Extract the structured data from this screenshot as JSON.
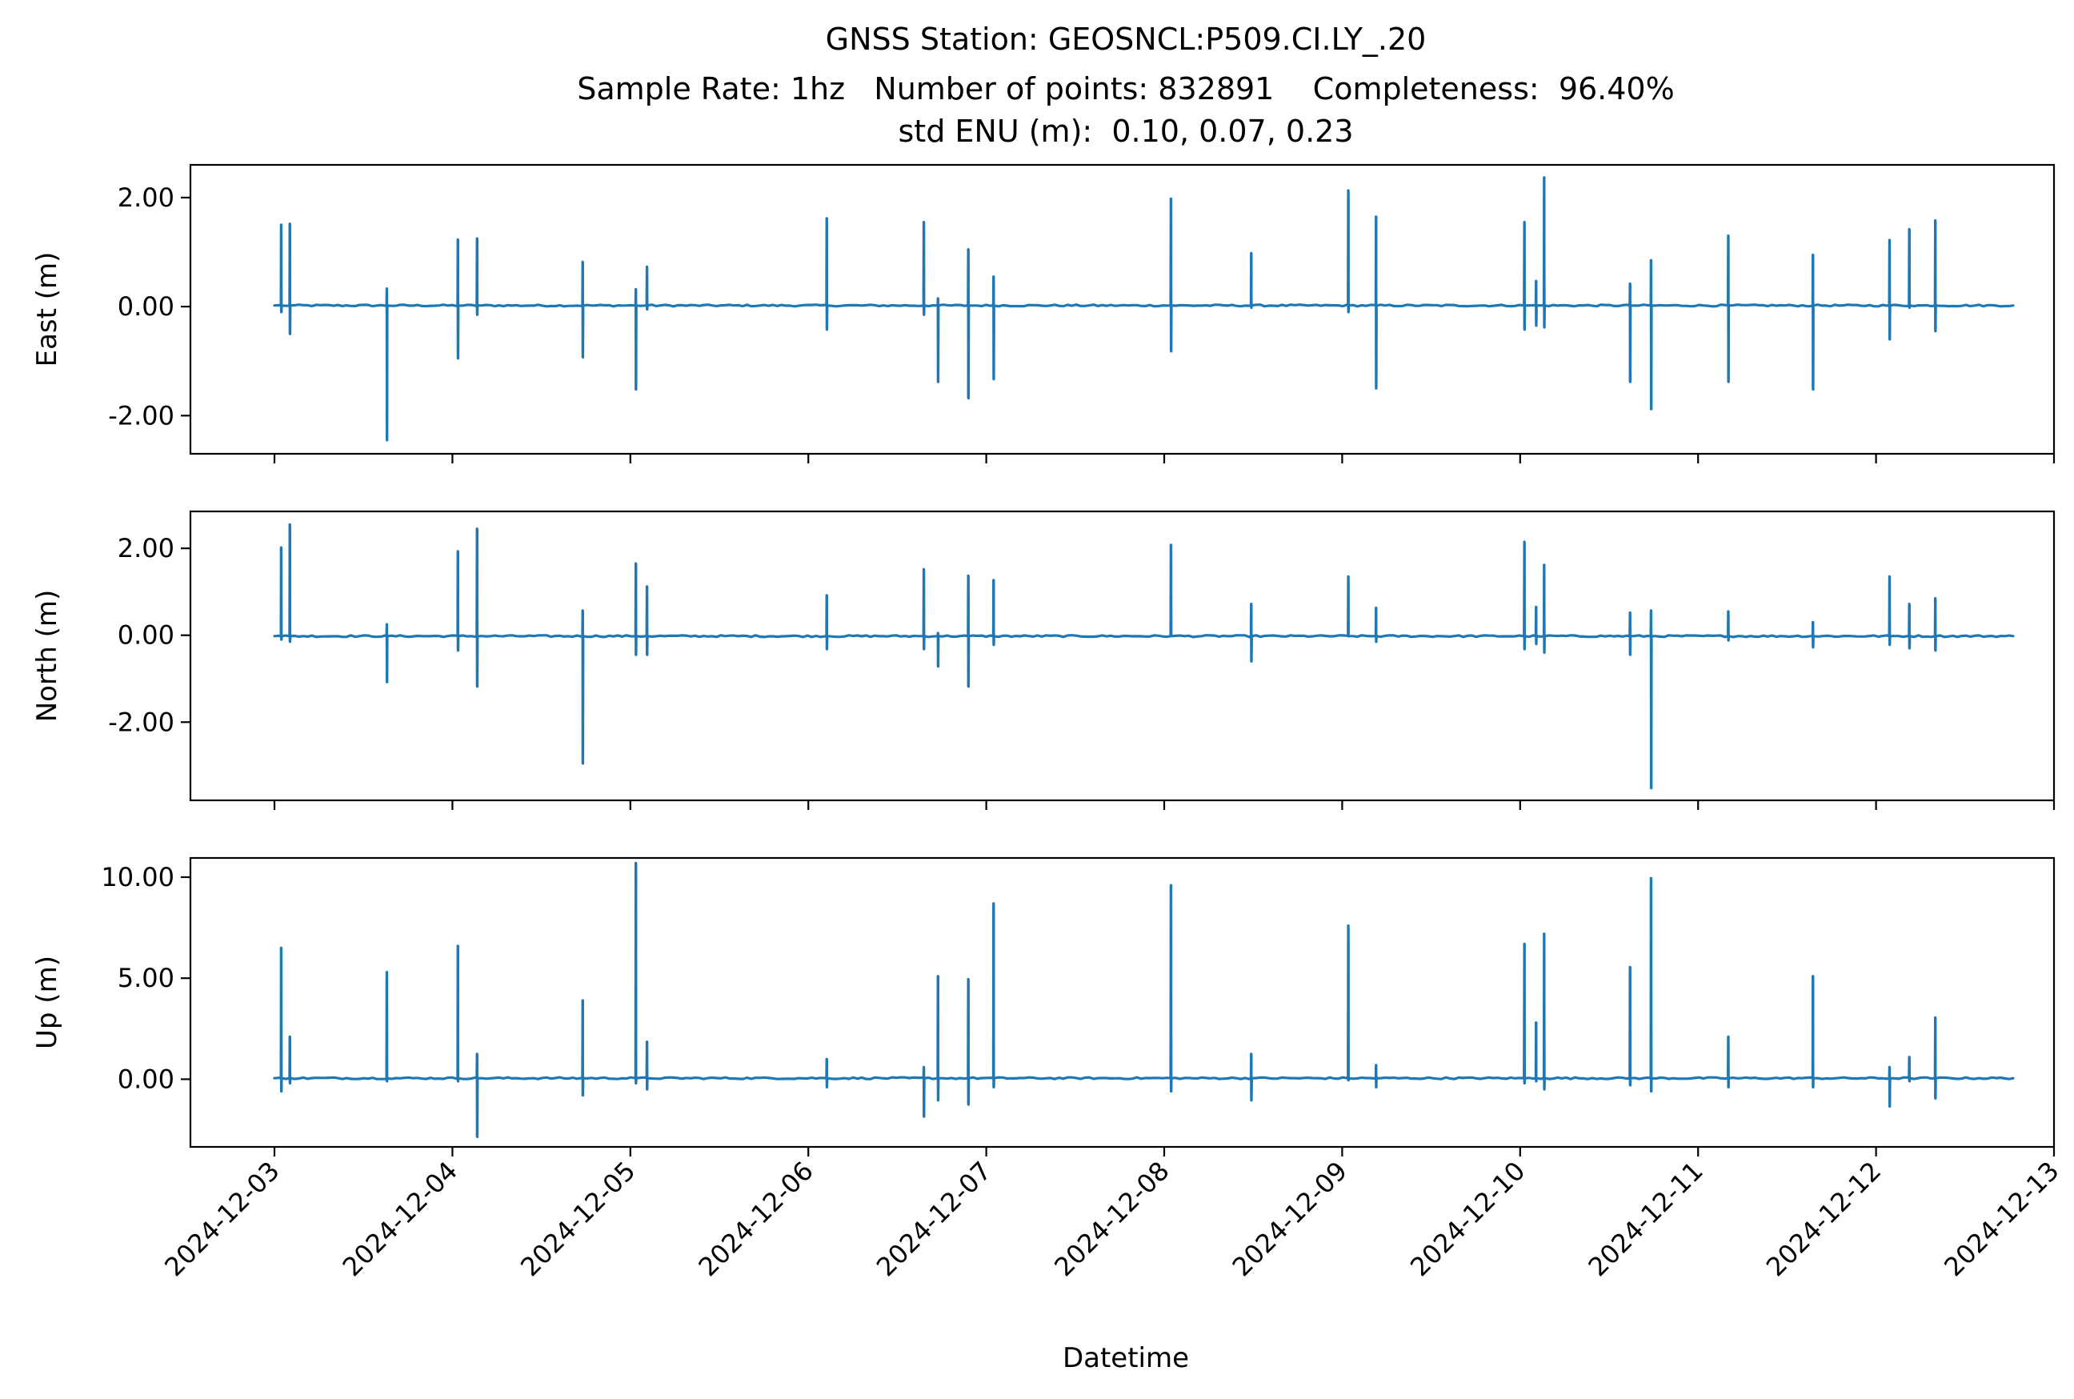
{
  "chart_data": [
    {
      "type": "line",
      "panel": "east",
      "title": [
        "GNSS Station: GEOSNCL:P509.CI.LY_.20",
        "Sample Rate: 1hz   Number of points: 832891    Completeness:  96.40%",
        "std ENU (m):  0.10, 0.07, 0.23"
      ],
      "ylabel": "East (m)",
      "xlabel": "",
      "xlim": [
        "2024-12-02T12:40",
        "2024-12-13T00:00"
      ],
      "ylim": [
        -2.7,
        2.6
      ],
      "yticks": [
        2.0,
        0.0,
        -2.0
      ],
      "ytick_labels": [
        "2.00",
        "0.00",
        "-2.00"
      ],
      "grid": false,
      "color": "#1f77b4",
      "baseline": 0.02,
      "spikes": [
        {
          "t": "2024-12-03T00:55",
          "hi": 1.5,
          "lo": -0.1
        },
        {
          "t": "2024-12-03T02:05",
          "hi": 1.52,
          "lo": -0.5
        },
        {
          "t": "2024-12-03T15:10",
          "hi": 0.33,
          "lo": -2.45
        },
        {
          "t": "2024-12-04T00:45",
          "hi": 1.23,
          "lo": -0.95
        },
        {
          "t": "2024-12-04T03:20",
          "hi": 1.25,
          "lo": -0.15
        },
        {
          "t": "2024-12-04T17:35",
          "hi": 0.82,
          "lo": -0.93
        },
        {
          "t": "2024-12-05T00:45",
          "hi": 0.32,
          "lo": -1.52
        },
        {
          "t": "2024-12-05T02:15",
          "hi": 0.73,
          "lo": -0.05
        },
        {
          "t": "2024-12-06T02:30",
          "hi": 1.62,
          "lo": -0.42
        },
        {
          "t": "2024-12-06T15:35",
          "hi": 1.55,
          "lo": -0.15
        },
        {
          "t": "2024-12-06T17:30",
          "hi": 0.15,
          "lo": -1.38
        },
        {
          "t": "2024-12-06T21:35",
          "hi": 1.05,
          "lo": -1.68
        },
        {
          "t": "2024-12-07T01:00",
          "hi": 0.55,
          "lo": -1.33
        },
        {
          "t": "2024-12-08T00:55",
          "hi": 1.98,
          "lo": -0.82
        },
        {
          "t": "2024-12-08T11:45",
          "hi": 0.98,
          "lo": -0.02
        },
        {
          "t": "2024-12-09T00:50",
          "hi": 2.13,
          "lo": -0.1
        },
        {
          "t": "2024-12-09T04:35",
          "hi": 1.65,
          "lo": -1.5
        },
        {
          "t": "2024-12-10T00:35",
          "hi": 1.55,
          "lo": -0.42
        },
        {
          "t": "2024-12-10T02:10",
          "hi": 0.47,
          "lo": -0.35
        },
        {
          "t": "2024-12-10T03:15",
          "hi": 2.37,
          "lo": -0.38
        },
        {
          "t": "2024-12-10T14:50",
          "hi": 0.42,
          "lo": -1.38
        },
        {
          "t": "2024-12-10T17:40",
          "hi": 0.85,
          "lo": -1.88
        },
        {
          "t": "2024-12-11T04:05",
          "hi": 1.3,
          "lo": -1.38
        },
        {
          "t": "2024-12-11T15:30",
          "hi": 0.95,
          "lo": -1.52
        },
        {
          "t": "2024-12-12T01:50",
          "hi": 1.22,
          "lo": -0.6
        },
        {
          "t": "2024-12-12T04:30",
          "hi": 1.42,
          "lo": -0.02
        },
        {
          "t": "2024-12-12T08:00",
          "hi": 1.58,
          "lo": -0.45
        }
      ]
    },
    {
      "type": "line",
      "panel": "north",
      "ylabel": "North (m)",
      "xlabel": "",
      "xlim": [
        "2024-12-02T12:40",
        "2024-12-13T00:00"
      ],
      "ylim": [
        -3.8,
        2.85
      ],
      "yticks": [
        2.0,
        0.0,
        -2.0
      ],
      "ytick_labels": [
        "2.00",
        "0.00",
        "-2.00"
      ],
      "grid": false,
      "color": "#1f77b4",
      "baseline": -0.02,
      "spikes": [
        {
          "t": "2024-12-03T00:55",
          "hi": 2.02,
          "lo": -0.1
        },
        {
          "t": "2024-12-03T02:05",
          "hi": 2.55,
          "lo": -0.15
        },
        {
          "t": "2024-12-03T15:10",
          "hi": 0.25,
          "lo": -1.08
        },
        {
          "t": "2024-12-04T00:45",
          "hi": 1.93,
          "lo": -0.35
        },
        {
          "t": "2024-12-04T03:20",
          "hi": 2.45,
          "lo": -1.18
        },
        {
          "t": "2024-12-04T17:35",
          "hi": 0.57,
          "lo": -2.95
        },
        {
          "t": "2024-12-05T00:45",
          "hi": 1.65,
          "lo": -0.45
        },
        {
          "t": "2024-12-05T02:15",
          "hi": 1.12,
          "lo": -0.45
        },
        {
          "t": "2024-12-06T02:30",
          "hi": 0.92,
          "lo": -0.32
        },
        {
          "t": "2024-12-06T15:35",
          "hi": 1.52,
          "lo": -0.32
        },
        {
          "t": "2024-12-06T17:30",
          "hi": 0.05,
          "lo": -0.72
        },
        {
          "t": "2024-12-06T21:35",
          "hi": 1.37,
          "lo": -1.18
        },
        {
          "t": "2024-12-07T01:00",
          "hi": 1.27,
          "lo": -0.22
        },
        {
          "t": "2024-12-08T00:55",
          "hi": 2.08,
          "lo": -0.02
        },
        {
          "t": "2024-12-08T11:45",
          "hi": 0.72,
          "lo": -0.6
        },
        {
          "t": "2024-12-09T00:50",
          "hi": 1.35,
          "lo": -0.02
        },
        {
          "t": "2024-12-09T04:35",
          "hi": 0.63,
          "lo": -0.15
        },
        {
          "t": "2024-12-10T00:35",
          "hi": 2.15,
          "lo": -0.32
        },
        {
          "t": "2024-12-10T02:10",
          "hi": 0.65,
          "lo": -0.2
        },
        {
          "t": "2024-12-10T03:15",
          "hi": 1.62,
          "lo": -0.4
        },
        {
          "t": "2024-12-10T14:50",
          "hi": 0.52,
          "lo": -0.45
        },
        {
          "t": "2024-12-10T17:40",
          "hi": 0.57,
          "lo": -3.52
        },
        {
          "t": "2024-12-11T04:05",
          "hi": 0.55,
          "lo": -0.12
        },
        {
          "t": "2024-12-11T15:30",
          "hi": 0.3,
          "lo": -0.28
        },
        {
          "t": "2024-12-12T01:50",
          "hi": 1.35,
          "lo": -0.22
        },
        {
          "t": "2024-12-12T04:30",
          "hi": 0.72,
          "lo": -0.3
        },
        {
          "t": "2024-12-12T08:00",
          "hi": 0.85,
          "lo": -0.35
        }
      ]
    },
    {
      "type": "line",
      "panel": "up",
      "ylabel": "Up (m)",
      "xlabel": "Datetime",
      "xlim": [
        "2024-12-02T12:40",
        "2024-12-13T00:00"
      ],
      "ylim": [
        -3.35,
        10.95
      ],
      "yticks": [
        10.0,
        5.0,
        0.0
      ],
      "ytick_labels": [
        "10.00",
        "5.00",
        "0.00"
      ],
      "xticks": [
        "2024-12-03",
        "2024-12-04",
        "2024-12-05",
        "2024-12-06",
        "2024-12-07",
        "2024-12-08",
        "2024-12-09",
        "2024-12-10",
        "2024-12-11",
        "2024-12-12",
        "2024-12-13"
      ],
      "grid": false,
      "color": "#1f77b4",
      "baseline": 0.05,
      "spikes": [
        {
          "t": "2024-12-03T00:55",
          "hi": 6.5,
          "lo": -0.6
        },
        {
          "t": "2024-12-03T02:05",
          "hi": 2.1,
          "lo": -0.2
        },
        {
          "t": "2024-12-03T15:10",
          "hi": 5.3,
          "lo": -0.1
        },
        {
          "t": "2024-12-04T00:45",
          "hi": 6.6,
          "lo": -0.1
        },
        {
          "t": "2024-12-04T03:20",
          "hi": 1.25,
          "lo": -2.85
        },
        {
          "t": "2024-12-04T17:35",
          "hi": 3.9,
          "lo": -0.8
        },
        {
          "t": "2024-12-05T00:45",
          "hi": 10.7,
          "lo": -0.2
        },
        {
          "t": "2024-12-05T02:15",
          "hi": 1.85,
          "lo": -0.5
        },
        {
          "t": "2024-12-06T02:30",
          "hi": 1.0,
          "lo": -0.4
        },
        {
          "t": "2024-12-06T15:35",
          "hi": 0.6,
          "lo": -1.85
        },
        {
          "t": "2024-12-06T17:30",
          "hi": 5.1,
          "lo": -1.05
        },
        {
          "t": "2024-12-06T21:35",
          "hi": 4.95,
          "lo": -1.25
        },
        {
          "t": "2024-12-07T01:00",
          "hi": 8.7,
          "lo": -0.4
        },
        {
          "t": "2024-12-08T00:55",
          "hi": 9.6,
          "lo": -0.6
        },
        {
          "t": "2024-12-08T11:45",
          "hi": 1.25,
          "lo": -1.05
        },
        {
          "t": "2024-12-09T00:50",
          "hi": 7.6,
          "lo": -0.05
        },
        {
          "t": "2024-12-09T04:35",
          "hi": 0.7,
          "lo": -0.4
        },
        {
          "t": "2024-12-10T00:35",
          "hi": 6.7,
          "lo": -0.2
        },
        {
          "t": "2024-12-10T02:10",
          "hi": 2.8,
          "lo": -0.1
        },
        {
          "t": "2024-12-10T03:15",
          "hi": 7.2,
          "lo": -0.5
        },
        {
          "t": "2024-12-10T14:50",
          "hi": 5.55,
          "lo": -0.3
        },
        {
          "t": "2024-12-10T17:40",
          "hi": 9.95,
          "lo": -0.6
        },
        {
          "t": "2024-12-11T04:05",
          "hi": 2.1,
          "lo": -0.4
        },
        {
          "t": "2024-12-11T15:30",
          "hi": 5.1,
          "lo": -0.4
        },
        {
          "t": "2024-12-12T01:50",
          "hi": 0.6,
          "lo": -1.35
        },
        {
          "t": "2024-12-12T04:30",
          "hi": 1.1,
          "lo": -0.1
        },
        {
          "t": "2024-12-12T08:00",
          "hi": 3.05,
          "lo": -0.95
        }
      ]
    }
  ]
}
